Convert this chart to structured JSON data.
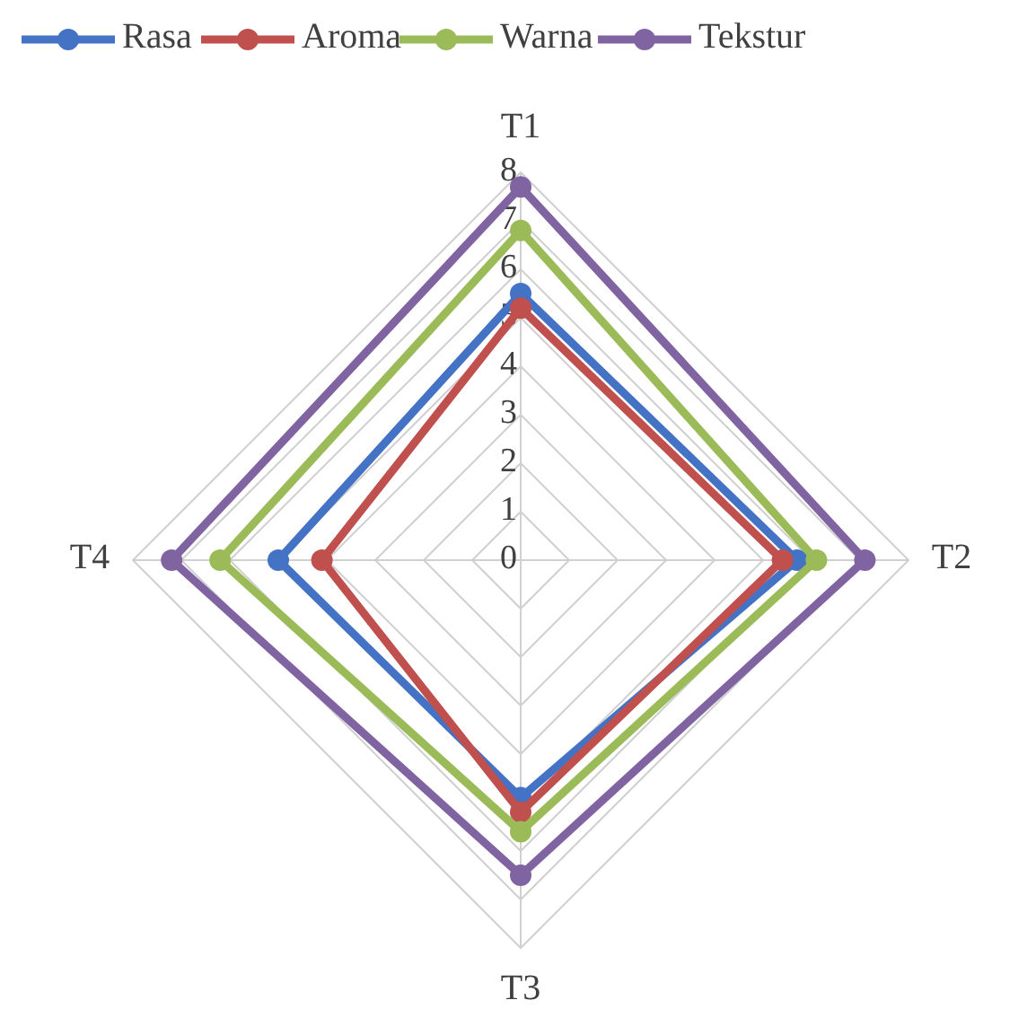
{
  "chart_data": {
    "type": "radar",
    "categories": [
      "T1",
      "T2",
      "T3",
      "T4"
    ],
    "ylim": [
      0,
      8
    ],
    "yticks": [
      0,
      1,
      2,
      3,
      4,
      5,
      6,
      7,
      8
    ],
    "grid": true,
    "legend": "top",
    "marker": "circle",
    "series": [
      {
        "name": "Rasa",
        "color": "#4472c4",
        "values": [
          5.5,
          5.7,
          4.9,
          5.0
        ]
      },
      {
        "name": "Aroma",
        "color": "#c0504d",
        "values": [
          5.2,
          5.4,
          5.2,
          4.1
        ]
      },
      {
        "name": "Warna",
        "color": "#9bbb59",
        "values": [
          6.8,
          6.1,
          5.6,
          6.2
        ]
      },
      {
        "name": "Tekstur",
        "color": "#8064a2",
        "values": [
          7.7,
          7.1,
          6.5,
          7.2
        ]
      }
    ]
  }
}
